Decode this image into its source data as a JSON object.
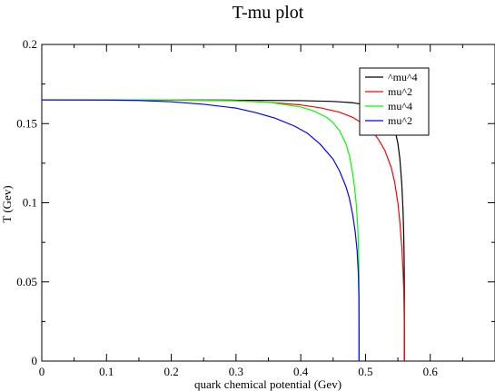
{
  "chart_data": {
    "type": "line",
    "title": "T-mu plot",
    "xlabel": "quark chemical potential (Gev)",
    "ylabel": "T (Gev)",
    "xlim": [
      0,
      0.7
    ],
    "ylim": [
      0,
      0.2
    ],
    "x_ticks": [
      "0",
      "0.1",
      "0.2",
      "0.3",
      "0.4",
      "0.5",
      "0.6"
    ],
    "y_ticks": [
      "0",
      "0.05",
      "0.1",
      "0.15",
      "0.2"
    ],
    "grid": false,
    "legend_position": "top-right",
    "series": [
      {
        "name": "^mu^4",
        "color": "#000000",
        "points": [
          [
            0,
            0.165
          ],
          [
            0.1,
            0.165
          ],
          [
            0.2,
            0.165
          ],
          [
            0.3,
            0.1648
          ],
          [
            0.4,
            0.1645
          ],
          [
            0.45,
            0.164
          ],
          [
            0.48,
            0.1632
          ],
          [
            0.5,
            0.1618
          ],
          [
            0.51,
            0.1608
          ],
          [
            0.52,
            0.1592
          ],
          [
            0.53,
            0.1565
          ],
          [
            0.54,
            0.1518
          ],
          [
            0.545,
            0.147
          ],
          [
            0.55,
            0.1375
          ],
          [
            0.553,
            0.128
          ],
          [
            0.556,
            0.112
          ],
          [
            0.558,
            0.095
          ],
          [
            0.559,
            0.08
          ],
          [
            0.5595,
            0.07
          ],
          [
            0.5598,
            0.06
          ],
          [
            0.56,
            0.04
          ],
          [
            0.56,
            0
          ]
        ]
      },
      {
        "name": "mu^2",
        "color": "#ff0000",
        "points": [
          [
            0,
            0.165
          ],
          [
            0.1,
            0.165
          ],
          [
            0.2,
            0.1648
          ],
          [
            0.3,
            0.1644
          ],
          [
            0.35,
            0.1635
          ],
          [
            0.4,
            0.1618
          ],
          [
            0.43,
            0.16
          ],
          [
            0.46,
            0.1572
          ],
          [
            0.48,
            0.154
          ],
          [
            0.5,
            0.149
          ],
          [
            0.51,
            0.1455
          ],
          [
            0.52,
            0.14
          ],
          [
            0.53,
            0.133
          ],
          [
            0.54,
            0.122
          ],
          [
            0.545,
            0.113
          ],
          [
            0.55,
            0.1
          ],
          [
            0.553,
            0.088
          ],
          [
            0.556,
            0.072
          ],
          [
            0.558,
            0.057
          ],
          [
            0.559,
            0.045
          ],
          [
            0.5595,
            0.035
          ],
          [
            0.56,
            0.02
          ],
          [
            0.56,
            0
          ]
        ]
      },
      {
        "name": "mu^4",
        "color": "#00ff00",
        "points": [
          [
            0,
            0.165
          ],
          [
            0.1,
            0.165
          ],
          [
            0.2,
            0.165
          ],
          [
            0.3,
            0.1645
          ],
          [
            0.35,
            0.1635
          ],
          [
            0.4,
            0.1605
          ],
          [
            0.42,
            0.158
          ],
          [
            0.44,
            0.154
          ],
          [
            0.45,
            0.1505
          ],
          [
            0.46,
            0.1455
          ],
          [
            0.47,
            0.137
          ],
          [
            0.475,
            0.13
          ],
          [
            0.48,
            0.119
          ],
          [
            0.483,
            0.11
          ],
          [
            0.486,
            0.098
          ],
          [
            0.488,
            0.085
          ],
          [
            0.489,
            0.074
          ],
          [
            0.4898,
            0.06
          ],
          [
            0.49,
            0.04
          ],
          [
            0.49,
            0
          ]
        ]
      },
      {
        "name": "mu^2",
        "color": "#0000ff",
        "points": [
          [
            0,
            0.165
          ],
          [
            0.1,
            0.1649
          ],
          [
            0.15,
            0.1646
          ],
          [
            0.2,
            0.1638
          ],
          [
            0.25,
            0.1622
          ],
          [
            0.3,
            0.1598
          ],
          [
            0.33,
            0.157
          ],
          [
            0.36,
            0.1535
          ],
          [
            0.39,
            0.1485
          ],
          [
            0.41,
            0.144
          ],
          [
            0.43,
            0.137
          ],
          [
            0.45,
            0.1275
          ],
          [
            0.46,
            0.12
          ],
          [
            0.47,
            0.11
          ],
          [
            0.475,
            0.103
          ],
          [
            0.48,
            0.093
          ],
          [
            0.484,
            0.082
          ],
          [
            0.487,
            0.07
          ],
          [
            0.489,
            0.055
          ],
          [
            0.4898,
            0.04
          ],
          [
            0.49,
            0.02
          ],
          [
            0.49,
            0
          ]
        ]
      }
    ]
  }
}
